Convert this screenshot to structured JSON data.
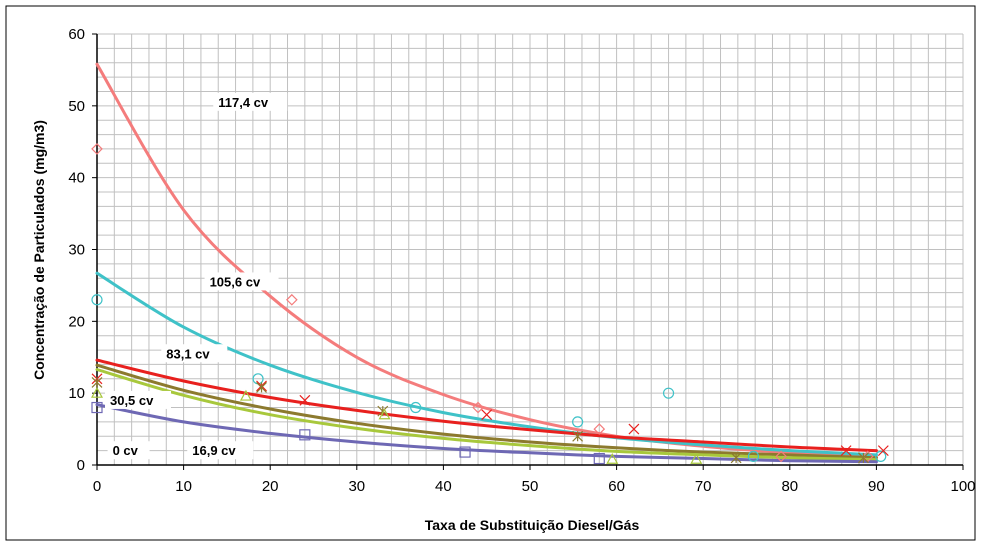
{
  "chart_data": {
    "type": "scatter",
    "xlabel": "Taxa de Substituição Diesel/Gás",
    "ylabel": "Concentração de Particulados (mg/m3)",
    "xlim": [
      0,
      100
    ],
    "ylim": [
      0,
      60
    ],
    "x_ticks": [
      "0",
      "10",
      "20",
      "30",
      "40",
      "50",
      "60",
      "70",
      "80",
      "90",
      "100"
    ],
    "y_ticks": [
      "0",
      "10",
      "20",
      "30",
      "40",
      "50",
      "60"
    ],
    "grid": true,
    "series": [
      {
        "name": "117,4 cv",
        "color": "#f47c7c",
        "marker": "diamond",
        "points": [
          [
            0,
            44
          ],
          [
            22.5,
            23
          ],
          [
            44,
            8
          ],
          [
            58,
            5
          ],
          [
            79,
            1.2
          ],
          [
            89,
            1.2
          ]
        ],
        "fit": {
          "x": [
            0,
            10,
            20,
            30,
            40,
            50,
            60,
            70,
            80,
            90
          ],
          "y": [
            55.8,
            35.5,
            23.5,
            15.0,
            9.8,
            6.3,
            4.0,
            2.6,
            1.7,
            1.1
          ]
        }
      },
      {
        "name": "105,6 cv",
        "color": "#3fc2c8",
        "marker": "circle",
        "points": [
          [
            0,
            23
          ],
          [
            18.6,
            12
          ],
          [
            36.8,
            8
          ],
          [
            55.5,
            6
          ],
          [
            66,
            10
          ],
          [
            75.8,
            1.2
          ],
          [
            90.5,
            1.2
          ]
        ],
        "fit": {
          "x": [
            0,
            10,
            20,
            30,
            40,
            50,
            60,
            70,
            80,
            90
          ],
          "y": [
            26.7,
            19.2,
            13.9,
            10.1,
            7.3,
            5.3,
            3.8,
            2.8,
            2.0,
            1.4
          ]
        }
      },
      {
        "name": "83,1 cv",
        "color": "#e8201e",
        "marker": "x",
        "points": [
          [
            0,
            12
          ],
          [
            19,
            11
          ],
          [
            24,
            9
          ],
          [
            45,
            7
          ],
          [
            62,
            5
          ],
          [
            86.5,
            2
          ],
          [
            90.8,
            2
          ]
        ],
        "fit": {
          "x": [
            0,
            10,
            20,
            30,
            40,
            50,
            60,
            70,
            80,
            90
          ],
          "y": [
            14.6,
            11.7,
            9.4,
            7.6,
            6.1,
            4.9,
            3.9,
            3.2,
            2.5,
            2.0
          ]
        }
      },
      {
        "name": "30,5 cv",
        "color": "#8c7a2e",
        "marker": "star",
        "points": [
          [
            0,
            11.5
          ],
          [
            19,
            10.8
          ],
          [
            33,
            7.5
          ],
          [
            55.5,
            4
          ],
          [
            73.8,
            1
          ],
          [
            88.5,
            1
          ]
        ],
        "fit": {
          "x": [
            0,
            10,
            20,
            30,
            40,
            50,
            60,
            70,
            80,
            90
          ],
          "y": [
            13.9,
            10.4,
            7.8,
            5.8,
            4.3,
            3.2,
            2.4,
            1.8,
            1.4,
            1.0
          ]
        }
      },
      {
        "name": "16,9 cv",
        "color": "#a8c83c",
        "marker": "triangle",
        "points": [
          [
            0,
            10
          ],
          [
            17.2,
            9.6
          ],
          [
            33.2,
            7
          ],
          [
            59.5,
            0.8
          ],
          [
            69.2,
            0.8
          ]
        ],
        "fit": {
          "x": [
            0,
            10,
            20,
            30,
            40,
            50,
            60,
            70,
            80,
            90
          ],
          "y": [
            13.3,
            9.7,
            7.0,
            5.1,
            3.7,
            2.7,
            1.9,
            1.4,
            1.0,
            0.75
          ]
        }
      },
      {
        "name": "0 cv",
        "color": "#6e68b4",
        "marker": "square",
        "points": [
          [
            0,
            8
          ],
          [
            24,
            4.2
          ],
          [
            42.5,
            1.8
          ],
          [
            58,
            0.9
          ]
        ],
        "fit": {
          "x": [
            0,
            10,
            20,
            30,
            40,
            50,
            60,
            70,
            80,
            90
          ],
          "y": [
            8.4,
            6.0,
            4.4,
            3.2,
            2.3,
            1.7,
            1.2,
            0.9,
            0.6,
            0.45
          ]
        }
      }
    ]
  }
}
